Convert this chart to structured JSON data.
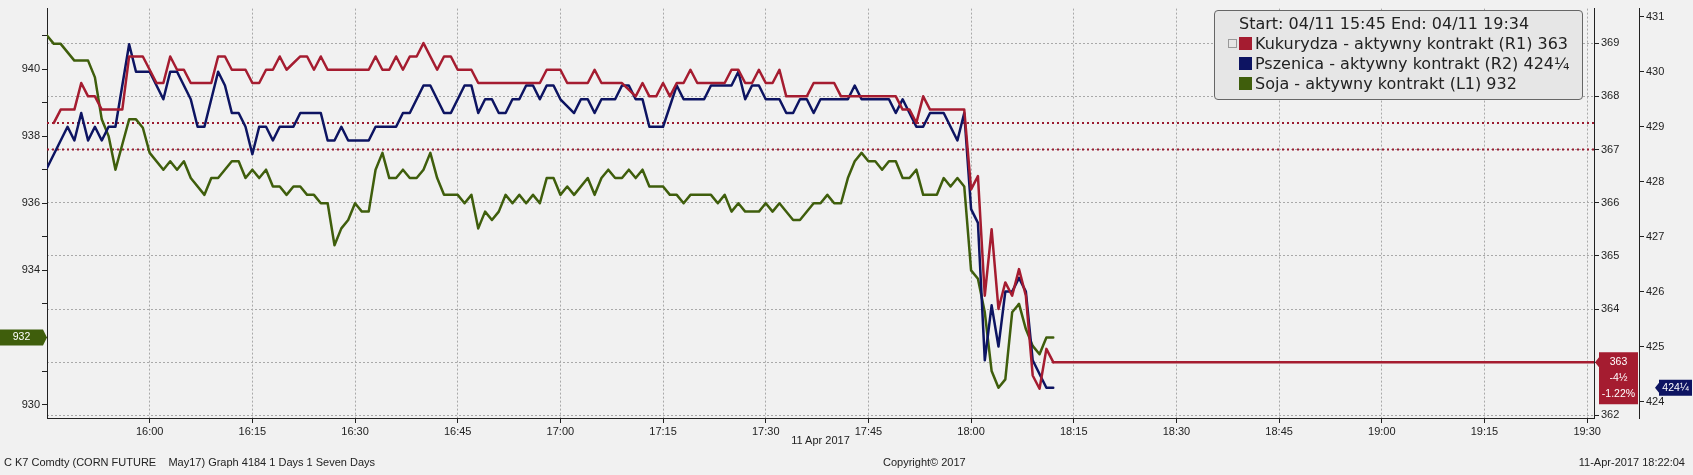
{
  "chart_data": {
    "type": "line",
    "xlabel": "11 Apr 2017",
    "legend_title": "Start: 04/11 15:45 End: 04/11 19:34",
    "legend": "top right",
    "grid": true,
    "xlim": [
      "2017-04-11T15:45",
      "2017-04-11T19:31"
    ],
    "xticks": [
      {
        "value": "2017-04-11T16:00",
        "label": "16:00"
      },
      {
        "value": "2017-04-11T16:15",
        "label": "16:15"
      },
      {
        "value": "2017-04-11T16:30",
        "label": "16:30"
      },
      {
        "value": "2017-04-11T16:45",
        "label": "16:45"
      },
      {
        "value": "2017-04-11T17:00",
        "label": "17:00"
      },
      {
        "value": "2017-04-11T17:15",
        "label": "17:15"
      },
      {
        "value": "2017-04-11T17:30",
        "label": "17:30"
      },
      {
        "value": "2017-04-11T17:45",
        "label": "17:45"
      },
      {
        "value": "2017-04-11T18:00",
        "label": "18:00"
      },
      {
        "value": "2017-04-11T18:15",
        "label": "18:15"
      },
      {
        "value": "2017-04-11T18:30",
        "label": "18:30"
      },
      {
        "value": "2017-04-11T18:45",
        "label": "18:45"
      },
      {
        "value": "2017-04-11T19:00",
        "label": "19:00"
      },
      {
        "value": "2017-04-11T19:15",
        "label": "19:15"
      },
      {
        "value": "2017-04-11T19:30",
        "label": "19:30"
      }
    ],
    "ylim": [
      929.6,
      941.8
    ],
    "yticks": [
      930,
      {
        "value": 931,
        "label": null
      },
      {
        "value": 932,
        "label": null
      },
      {
        "value": 933,
        "label": null
      },
      934,
      {
        "value": 935,
        "label": null
      },
      936,
      {
        "value": 937,
        "label": null
      },
      938,
      {
        "value": 939,
        "label": null
      },
      940,
      {
        "value": 941,
        "label": null
      }
    ],
    "y2lim": [
      361.95,
      369.65
    ],
    "y2ticks": [
      362,
      {
        "value": 363,
        "label": null
      },
      364,
      365,
      366,
      367,
      368,
      369
    ],
    "y3lim": [
      423.7,
      431.15
    ],
    "y3ticks": [
      424,
      425,
      426,
      427,
      428,
      429,
      430,
      431
    ],
    "ref_lines": [
      {
        "axis": "y2",
        "value": 367.5,
        "color": "#9b1b30",
        "line_style": "dotted"
      },
      {
        "axis": "y2",
        "value": 367,
        "color": "#9b1b30",
        "line_style": "dotted"
      }
    ],
    "series": [
      {
        "name": "Kukurydza - aktywny kontrakt (R1) 363",
        "color": "#a51c30",
        "axis": "y2",
        "x": [
          "2017-04-11T15:46",
          "2017-04-11T15:47",
          "2017-04-11T15:49",
          "2017-04-11T15:50",
          "2017-04-11T15:51",
          "2017-04-11T15:52",
          "2017-04-11T15:53",
          "2017-04-11T15:56",
          "2017-04-11T15:57",
          "2017-04-11T15:59",
          "2017-04-11T16:00",
          "2017-04-11T16:01",
          "2017-04-11T16:02",
          "2017-04-11T16:03",
          "2017-04-11T16:04",
          "2017-04-11T16:05",
          "2017-04-11T16:06",
          "2017-04-11T16:09",
          "2017-04-11T16:10",
          "2017-04-11T16:11",
          "2017-04-11T16:12",
          "2017-04-11T16:14",
          "2017-04-11T16:15",
          "2017-04-11T16:16",
          "2017-04-11T16:17",
          "2017-04-11T16:18",
          "2017-04-11T16:19",
          "2017-04-11T16:20",
          "2017-04-11T16:22",
          "2017-04-11T16:23",
          "2017-04-11T16:24",
          "2017-04-11T16:25",
          "2017-04-11T16:26",
          "2017-04-11T16:32",
          "2017-04-11T16:33",
          "2017-04-11T16:34",
          "2017-04-11T16:35",
          "2017-04-11T16:36",
          "2017-04-11T16:37",
          "2017-04-11T16:38",
          "2017-04-11T16:39",
          "2017-04-11T16:40",
          "2017-04-11T16:42",
          "2017-04-11T16:43",
          "2017-04-11T16:44",
          "2017-04-11T16:45",
          "2017-04-11T16:47",
          "2017-04-11T16:48",
          "2017-04-11T16:57",
          "2017-04-11T16:58",
          "2017-04-11T17:00",
          "2017-04-11T17:01",
          "2017-04-11T17:04",
          "2017-04-11T17:05",
          "2017-04-11T17:06",
          "2017-04-11T17:09",
          "2017-04-11T17:11",
          "2017-04-11T17:12",
          "2017-04-11T17:13",
          "2017-04-11T17:14",
          "2017-04-11T17:15",
          "2017-04-11T17:16",
          "2017-04-11T17:17",
          "2017-04-11T17:18",
          "2017-04-11T17:19",
          "2017-04-11T17:20",
          "2017-04-11T17:24",
          "2017-04-11T17:25",
          "2017-04-11T17:26",
          "2017-04-11T17:27",
          "2017-04-11T17:28",
          "2017-04-11T17:29",
          "2017-04-11T17:30",
          "2017-04-11T17:31",
          "2017-04-11T17:32",
          "2017-04-11T17:33",
          "2017-04-11T17:36",
          "2017-04-11T17:37",
          "2017-04-11T17:40",
          "2017-04-11T17:41",
          "2017-04-11T17:49",
          "2017-04-11T17:50",
          "2017-04-11T17:51",
          "2017-04-11T17:52",
          "2017-04-11T17:53",
          "2017-04-11T17:54",
          "2017-04-11T17:59",
          "2017-04-11T18:00",
          "2017-04-11T18:01",
          "2017-04-11T18:02",
          "2017-04-11T18:03",
          "2017-04-11T18:04",
          "2017-04-11T18:05",
          "2017-04-11T18:06",
          "2017-04-11T18:07",
          "2017-04-11T18:08",
          "2017-04-11T18:09",
          "2017-04-11T18:10",
          "2017-04-11T18:11",
          "2017-04-11T18:12"
        ],
        "values": [
          367.5,
          367.75,
          367.75,
          368.25,
          368,
          368,
          367.75,
          367.75,
          368.75,
          368.75,
          368.5,
          368.25,
          368.25,
          368.75,
          368.5,
          368.5,
          368.25,
          368.25,
          368.75,
          368.75,
          368.5,
          368.5,
          368.25,
          368.25,
          368.5,
          368.5,
          368.75,
          368.5,
          368.75,
          368.75,
          368.5,
          368.75,
          368.5,
          368.5,
          368.75,
          368.5,
          368.5,
          368.75,
          368.5,
          368.75,
          368.75,
          369,
          368.5,
          368.75,
          368.75,
          368.5,
          368.5,
          368.25,
          368.25,
          368.5,
          368.5,
          368.25,
          368.25,
          368.5,
          368.25,
          368.25,
          368,
          368.25,
          368,
          368,
          368.25,
          368,
          368.25,
          368.25,
          368.5,
          368.25,
          368.25,
          368.5,
          368.5,
          368.25,
          368.25,
          368.5,
          368.25,
          368.25,
          368.5,
          368,
          368,
          368.25,
          368.25,
          368,
          368,
          367.75,
          367.75,
          367.5,
          368,
          367.75,
          367.75,
          366.25,
          366.5,
          364.25,
          365.5,
          364,
          364.5,
          364.25,
          364.75,
          364.25,
          362.75,
          362.5,
          363.25,
          363
        ]
      },
      {
        "name": "Pszenica - aktywny kontrakt (R2) 424¼",
        "color": "#0d1462",
        "axis": "y3",
        "x": [
          "2017-04-11T15:45",
          "2017-04-11T15:48",
          "2017-04-11T15:49",
          "2017-04-11T15:50",
          "2017-04-11T15:51",
          "2017-04-11T15:52",
          "2017-04-11T15:53",
          "2017-04-11T15:54",
          "2017-04-11T15:55",
          "2017-04-11T15:57",
          "2017-04-11T15:58",
          "2017-04-11T16:00",
          "2017-04-11T16:02",
          "2017-04-11T16:03",
          "2017-04-11T16:04",
          "2017-04-11T16:06",
          "2017-04-11T16:07",
          "2017-04-11T16:08",
          "2017-04-11T16:10",
          "2017-04-11T16:11",
          "2017-04-11T16:12",
          "2017-04-11T16:13",
          "2017-04-11T16:14",
          "2017-04-11T16:15",
          "2017-04-11T16:16",
          "2017-04-11T16:17",
          "2017-04-11T16:18",
          "2017-04-11T16:19",
          "2017-04-11T16:21",
          "2017-04-11T16:22",
          "2017-04-11T16:25",
          "2017-04-11T16:26",
          "2017-04-11T16:27",
          "2017-04-11T16:28",
          "2017-04-11T16:29",
          "2017-04-11T16:32",
          "2017-04-11T16:33",
          "2017-04-11T16:36",
          "2017-04-11T16:37",
          "2017-04-11T16:38",
          "2017-04-11T16:40",
          "2017-04-11T16:41",
          "2017-04-11T16:42",
          "2017-04-11T16:43",
          "2017-04-11T16:44",
          "2017-04-11T16:46",
          "2017-04-11T16:47",
          "2017-04-11T16:48",
          "2017-04-11T16:49",
          "2017-04-11T16:50",
          "2017-04-11T16:51",
          "2017-04-11T16:52",
          "2017-04-11T16:53",
          "2017-04-11T16:54",
          "2017-04-11T16:55",
          "2017-04-11T16:56",
          "2017-04-11T16:57",
          "2017-04-11T16:58",
          "2017-04-11T16:59",
          "2017-04-11T17:00",
          "2017-04-11T17:02",
          "2017-04-11T17:03",
          "2017-04-11T17:04",
          "2017-04-11T17:05",
          "2017-04-11T17:06",
          "2017-04-11T17:08",
          "2017-04-11T17:09",
          "2017-04-11T17:10",
          "2017-04-11T17:11",
          "2017-04-11T17:12",
          "2017-04-11T17:13",
          "2017-04-11T17:15",
          "2017-04-11T17:17",
          "2017-04-11T17:18",
          "2017-04-11T17:21",
          "2017-04-11T17:22",
          "2017-04-11T17:25",
          "2017-04-11T17:26",
          "2017-04-11T17:27",
          "2017-04-11T17:28",
          "2017-04-11T17:29",
          "2017-04-11T17:30",
          "2017-04-11T17:32",
          "2017-04-11T17:33",
          "2017-04-11T17:34",
          "2017-04-11T17:35",
          "2017-04-11T17:36",
          "2017-04-11T17:37",
          "2017-04-11T17:38",
          "2017-04-11T17:42",
          "2017-04-11T17:43",
          "2017-04-11T17:44",
          "2017-04-11T17:48",
          "2017-04-11T17:49",
          "2017-04-11T17:50",
          "2017-04-11T17:51",
          "2017-04-11T17:52",
          "2017-04-11T17:53",
          "2017-04-11T17:54",
          "2017-04-11T17:56",
          "2017-04-11T17:57",
          "2017-04-11T17:58",
          "2017-04-11T17:59",
          "2017-04-11T18:00",
          "2017-04-11T18:01",
          "2017-04-11T18:02",
          "2017-04-11T18:03",
          "2017-04-11T18:04",
          "2017-04-11T18:05",
          "2017-04-11T18:06",
          "2017-04-11T18:07",
          "2017-04-11T18:08",
          "2017-04-11T18:09",
          "2017-04-11T18:11",
          "2017-04-11T18:12"
        ],
        "values": [
          428.25,
          429,
          428.75,
          429.25,
          428.75,
          429,
          428.75,
          429,
          429,
          430.5,
          430,
          430,
          429.5,
          430,
          430,
          429.5,
          429,
          429,
          430,
          429.75,
          429.25,
          429.25,
          429,
          428.5,
          429,
          429,
          428.75,
          429,
          429,
          429.25,
          429.25,
          428.75,
          428.75,
          429,
          428.75,
          428.75,
          429,
          429,
          429.25,
          429.25,
          429.75,
          429.75,
          429.5,
          429.25,
          429.25,
          429.75,
          429.75,
          429.25,
          429.5,
          429.5,
          429.25,
          429.25,
          429.5,
          429.5,
          429.75,
          429.75,
          429.5,
          429.75,
          429.75,
          429.5,
          429.25,
          429.5,
          429.5,
          429.25,
          429.5,
          429.5,
          429.75,
          429.75,
          429.5,
          429.5,
          429,
          429,
          429.75,
          429.5,
          429.5,
          429.75,
          429.75,
          430,
          429.5,
          429.75,
          429.75,
          429.5,
          429.5,
          429.25,
          429.25,
          429.5,
          429.5,
          429.25,
          429.5,
          429.5,
          429.75,
          429.5,
          429.5,
          429.25,
          429.5,
          429.25,
          429,
          429,
          429.25,
          429.25,
          429,
          428.75,
          429.25,
          427.5,
          427.25,
          424.75,
          425.75,
          425,
          426,
          426,
          426.25,
          426,
          424.75,
          424.25,
          424.25
        ]
      },
      {
        "name": "Soja - aktywny kontrakt (L1) 932",
        "color": "#3f5e0c",
        "x": [
          "2017-04-11T15:45",
          "2017-04-11T15:46",
          "2017-04-11T15:47",
          "2017-04-11T15:49",
          "2017-04-11T15:51",
          "2017-04-11T15:52",
          "2017-04-11T15:53",
          "2017-04-11T15:54",
          "2017-04-11T15:55",
          "2017-04-11T15:56",
          "2017-04-11T15:57",
          "2017-04-11T15:58",
          "2017-04-11T15:59",
          "2017-04-11T16:00",
          "2017-04-11T16:02",
          "2017-04-11T16:03",
          "2017-04-11T16:04",
          "2017-04-11T16:05",
          "2017-04-11T16:06",
          "2017-04-11T16:08",
          "2017-04-11T16:09",
          "2017-04-11T16:10",
          "2017-04-11T16:12",
          "2017-04-11T16:13",
          "2017-04-11T16:14",
          "2017-04-11T16:15",
          "2017-04-11T16:16",
          "2017-04-11T16:17",
          "2017-04-11T16:18",
          "2017-04-11T16:19",
          "2017-04-11T16:20",
          "2017-04-11T16:21",
          "2017-04-11T16:22",
          "2017-04-11T16:23",
          "2017-04-11T16:24",
          "2017-04-11T16:25",
          "2017-04-11T16:26",
          "2017-04-11T16:27",
          "2017-04-11T16:28",
          "2017-04-11T16:29",
          "2017-04-11T16:30",
          "2017-04-11T16:31",
          "2017-04-11T16:32",
          "2017-04-11T16:33",
          "2017-04-11T16:34",
          "2017-04-11T16:35",
          "2017-04-11T16:36",
          "2017-04-11T16:37",
          "2017-04-11T16:38",
          "2017-04-11T16:39",
          "2017-04-11T16:40",
          "2017-04-11T16:41",
          "2017-04-11T16:42",
          "2017-04-11T16:43",
          "2017-04-11T16:45",
          "2017-04-11T16:46",
          "2017-04-11T16:47",
          "2017-04-11T16:48",
          "2017-04-11T16:49",
          "2017-04-11T16:50",
          "2017-04-11T16:51",
          "2017-04-11T16:52",
          "2017-04-11T16:53",
          "2017-04-11T16:54",
          "2017-04-11T16:55",
          "2017-04-11T16:56",
          "2017-04-11T16:57",
          "2017-04-11T16:58",
          "2017-04-11T16:59",
          "2017-04-11T17:00",
          "2017-04-11T17:01",
          "2017-04-11T17:02",
          "2017-04-11T17:04",
          "2017-04-11T17:05",
          "2017-04-11T17:06",
          "2017-04-11T17:07",
          "2017-04-11T17:08",
          "2017-04-11T17:09",
          "2017-04-11T17:10",
          "2017-04-11T17:11",
          "2017-04-11T17:12",
          "2017-04-11T17:13",
          "2017-04-11T17:15",
          "2017-04-11T17:16",
          "2017-04-11T17:17",
          "2017-04-11T17:18",
          "2017-04-11T17:19",
          "2017-04-11T17:22",
          "2017-04-11T17:23",
          "2017-04-11T17:24",
          "2017-04-11T17:25",
          "2017-04-11T17:26",
          "2017-04-11T17:27",
          "2017-04-11T17:29",
          "2017-04-11T17:30",
          "2017-04-11T17:31",
          "2017-04-11T17:32",
          "2017-04-11T17:34",
          "2017-04-11T17:35",
          "2017-04-11T17:37",
          "2017-04-11T17:38",
          "2017-04-11T17:39",
          "2017-04-11T17:40",
          "2017-04-11T17:41",
          "2017-04-11T17:42",
          "2017-04-11T17:43",
          "2017-04-11T17:44",
          "2017-04-11T17:45",
          "2017-04-11T17:46",
          "2017-04-11T17:47",
          "2017-04-11T17:48",
          "2017-04-11T17:49",
          "2017-04-11T17:50",
          "2017-04-11T17:51",
          "2017-04-11T17:52",
          "2017-04-11T17:53",
          "2017-04-11T17:55",
          "2017-04-11T17:56",
          "2017-04-11T17:57",
          "2017-04-11T17:58",
          "2017-04-11T17:59",
          "2017-04-11T18:00",
          "2017-04-11T18:01",
          "2017-04-11T18:02",
          "2017-04-11T18:03",
          "2017-04-11T18:04",
          "2017-04-11T18:05",
          "2017-04-11T18:06",
          "2017-04-11T18:07",
          "2017-04-11T18:08",
          "2017-04-11T18:09",
          "2017-04-11T18:10",
          "2017-04-11T18:11",
          "2017-04-11T18:12"
        ],
        "values": [
          941,
          940.75,
          940.75,
          940.25,
          940.25,
          939.75,
          938.5,
          938,
          937,
          937.75,
          938.5,
          938.5,
          938.25,
          937.5,
          937,
          937.25,
          937,
          937.25,
          936.75,
          936.25,
          936.75,
          936.75,
          937.25,
          937.25,
          936.75,
          937,
          936.75,
          937,
          936.5,
          936.5,
          936.25,
          936.5,
          936.5,
          936.25,
          936.25,
          936,
          936,
          934.75,
          935.25,
          935.5,
          936,
          935.75,
          935.75,
          937,
          937.5,
          936.75,
          936.75,
          937,
          936.75,
          936.75,
          937,
          937.5,
          936.75,
          936.25,
          936.25,
          936,
          936.25,
          935.25,
          935.75,
          935.5,
          935.75,
          936.25,
          936,
          936.25,
          936,
          936.25,
          936,
          936.75,
          936.75,
          936.25,
          936.5,
          936.25,
          936.75,
          936.25,
          936.75,
          937,
          936.75,
          936.75,
          937,
          936.75,
          937,
          936.5,
          936.5,
          936.25,
          936.25,
          936,
          936.25,
          936.25,
          936,
          936.25,
          935.75,
          936,
          935.75,
          935.75,
          936,
          935.75,
          936,
          935.5,
          935.5,
          936,
          936,
          936.25,
          936,
          936,
          936.75,
          937.25,
          937.5,
          937.25,
          937.25,
          937,
          937.25,
          937.25,
          936.75,
          936.75,
          937,
          936.25,
          936.25,
          936.75,
          936.5,
          936.75,
          936.5,
          934,
          933.75,
          932.75,
          931,
          930.5,
          930.75,
          932.75,
          933,
          932.25,
          931.75,
          931.5,
          932,
          932
        ]
      },
      {
        "color": "#a51c30",
        "axis": "y2",
        "x": [
          "2017-04-11T18:12",
          "2017-04-11T19:31"
        ],
        "values": [
          363,
          363
        ]
      }
    ],
    "annotations": [
      "932",
      "363",
      "-4½",
      "-1.22%",
      "424¼",
      "C K7 Comdty (CORN FUTURE    May17) Graph 4184 1 Days 1 Seven Days",
      "Copyright© 2017",
      "11-Apr-2017 18:22:04"
    ]
  }
}
